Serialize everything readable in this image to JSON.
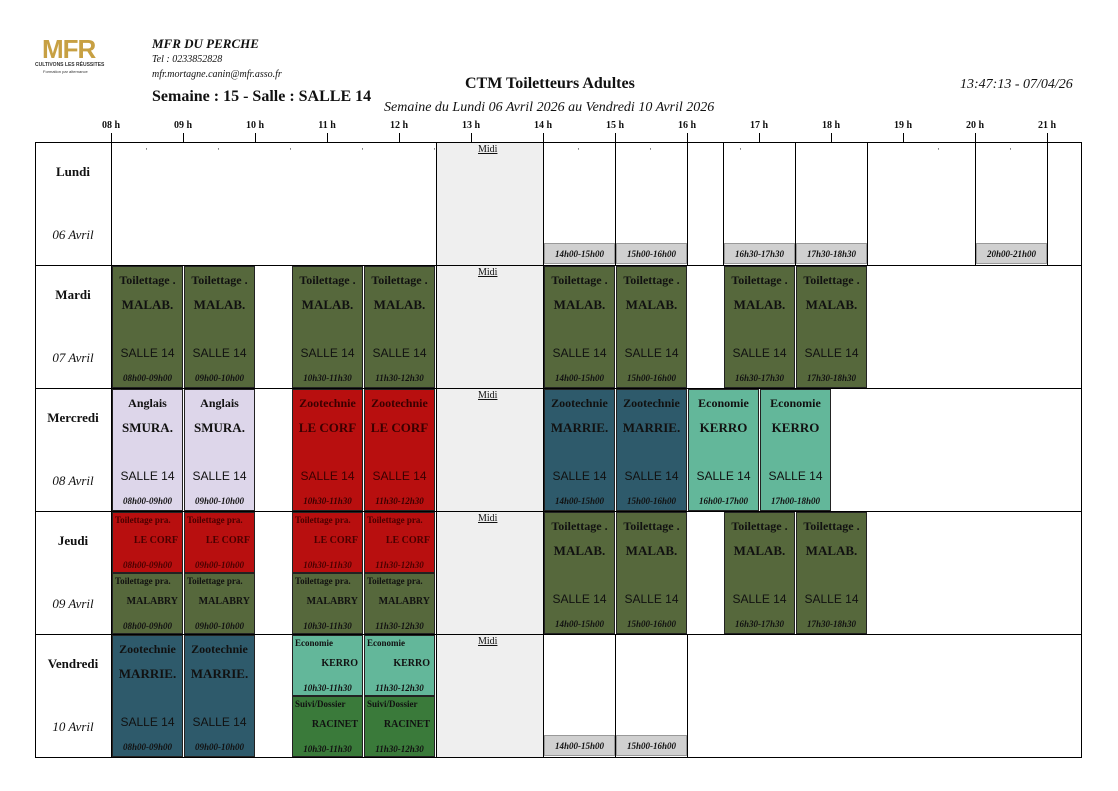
{
  "header": {
    "logo_text": "MFR",
    "logo_tagline": "CULTIVONS LES RÉUSSITES",
    "logo_sub": "Formation par alternance",
    "org": "MFR DU PERCHE",
    "tel": "Tel : 0233852828",
    "email": "mfr.mortagne.canin@mfr.asso.fr",
    "semaine": "Semaine : 15 - Salle : SALLE 14",
    "title": "CTM Toiletteurs Adultes",
    "subtitle": "Semaine du Lundi 06 Avril 2026 au Vendredi 10 Avril 2026",
    "clock": "13:47:13 - 07/04/26"
  },
  "hours": [
    "08 h",
    "09 h",
    "10 h",
    "11 h",
    "12 h",
    "13 h",
    "14 h",
    "15 h",
    "16 h",
    "17 h",
    "18 h",
    "19 h",
    "20 h",
    "21 h"
  ],
  "midi": "Midi",
  "days": [
    {
      "name": "Lundi",
      "date": "06 Avril"
    },
    {
      "name": "Mardi",
      "date": "07 Avril"
    },
    {
      "name": "Mercredi",
      "date": "08 Avril"
    },
    {
      "name": "Jeudi",
      "date": "09 Avril"
    },
    {
      "name": "Vendredi",
      "date": "10 Avril"
    }
  ],
  "lundi_slots": [
    "14h00-15h00",
    "15h00-16h00",
    "16h30-17h30",
    "17h30-18h30",
    "20h00-21h00"
  ],
  "mardi": [
    {
      "subject": "Toilettage .",
      "prof": "MALAB.",
      "room": "SALLE 14",
      "time": "08h00-09h00"
    },
    {
      "subject": "Toilettage .",
      "prof": "MALAB.",
      "room": "SALLE 14",
      "time": "09h00-10h00"
    },
    {
      "subject": "Toilettage .",
      "prof": "MALAB.",
      "room": "SALLE 14",
      "time": "10h30-11h30"
    },
    {
      "subject": "Toilettage .",
      "prof": "MALAB.",
      "room": "SALLE 14",
      "time": "11h30-12h30"
    },
    {
      "subject": "Toilettage .",
      "prof": "MALAB.",
      "room": "SALLE 14",
      "time": "14h00-15h00"
    },
    {
      "subject": "Toilettage .",
      "prof": "MALAB.",
      "room": "SALLE 14",
      "time": "15h00-16h00"
    },
    {
      "subject": "Toilettage .",
      "prof": "MALAB.",
      "room": "SALLE 14",
      "time": "16h30-17h30"
    },
    {
      "subject": "Toilettage .",
      "prof": "MALAB.",
      "room": "SALLE 14",
      "time": "17h30-18h30"
    }
  ],
  "mercredi": [
    {
      "subject": "Anglais",
      "prof": "SMURA.",
      "room": "SALLE 14",
      "time": "08h00-09h00"
    },
    {
      "subject": "Anglais",
      "prof": "SMURA.",
      "room": "SALLE 14",
      "time": "09h00-10h00"
    },
    {
      "subject": "Zootechnie",
      "prof": "LE CORF",
      "room": "SALLE 14",
      "time": "10h30-11h30"
    },
    {
      "subject": "Zootechnie",
      "prof": "LE CORF",
      "room": "SALLE 14",
      "time": "11h30-12h30"
    },
    {
      "subject": "Zootechnie",
      "prof": "MARRIE.",
      "room": "SALLE 14",
      "time": "14h00-15h00"
    },
    {
      "subject": "Zootechnie",
      "prof": "MARRIE.",
      "room": "SALLE 14",
      "time": "15h00-16h00"
    },
    {
      "subject": "Economie",
      "prof": "KERRO",
      "room": "SALLE 14",
      "time": "16h00-17h00"
    },
    {
      "subject": "Economie",
      "prof": "KERRO",
      "room": "SALLE 14",
      "time": "17h00-18h00"
    }
  ],
  "jeudi_top": [
    {
      "subject": "Toilettage pra.",
      "prof": "LE CORF",
      "time": "08h00-09h00"
    },
    {
      "subject": "Toilettage pra.",
      "prof": "LE CORF",
      "time": "09h00-10h00"
    },
    {
      "subject": "Toilettage pra.",
      "prof": "LE CORF",
      "time": "10h30-11h30"
    },
    {
      "subject": "Toilettage pra.",
      "prof": "LE CORF",
      "time": "11h30-12h30"
    }
  ],
  "jeudi_bottom": [
    {
      "subject": "Toilettage pra.",
      "prof": "MALABRY",
      "time": "08h00-09h00"
    },
    {
      "subject": "Toilettage pra.",
      "prof": "MALABRY",
      "time": "09h00-10h00"
    },
    {
      "subject": "Toilettage pra.",
      "prof": "MALABRY",
      "time": "10h30-11h30"
    },
    {
      "subject": "Toilettage pra.",
      "prof": "MALABRY",
      "time": "11h30-12h30"
    }
  ],
  "jeudi_pm": [
    {
      "subject": "Toilettage .",
      "prof": "MALAB.",
      "room": "SALLE 14",
      "time": "14h00-15h00"
    },
    {
      "subject": "Toilettage .",
      "prof": "MALAB.",
      "room": "SALLE 14",
      "time": "15h00-16h00"
    },
    {
      "subject": "Toilettage .",
      "prof": "MALAB.",
      "room": "SALLE 14",
      "time": "16h30-17h30"
    },
    {
      "subject": "Toilettage .",
      "prof": "MALAB.",
      "room": "SALLE 14",
      "time": "17h30-18h30"
    }
  ],
  "vendredi": [
    {
      "subject": "Zootechnie",
      "prof": "MARRIE.",
      "room": "SALLE 14",
      "time": "08h00-09h00"
    },
    {
      "subject": "Zootechnie",
      "prof": "MARRIE.",
      "room": "SALLE 14",
      "time": "09h00-10h00"
    }
  ],
  "vendredi_top": [
    {
      "subject": "Economie",
      "prof": "KERRO",
      "time": "10h30-11h30"
    },
    {
      "subject": "Economie",
      "prof": "KERRO",
      "time": "11h30-12h30"
    }
  ],
  "vendredi_bottom": [
    {
      "subject": "Suivi/Dossier",
      "prof": "RACINET",
      "time": "10h30-11h30"
    },
    {
      "subject": "Suivi/Dossier",
      "prof": "RACINET",
      "time": "11h30-12h30"
    }
  ],
  "vendredi_slots": [
    "14h00-15h00",
    "15h00-16h00"
  ]
}
